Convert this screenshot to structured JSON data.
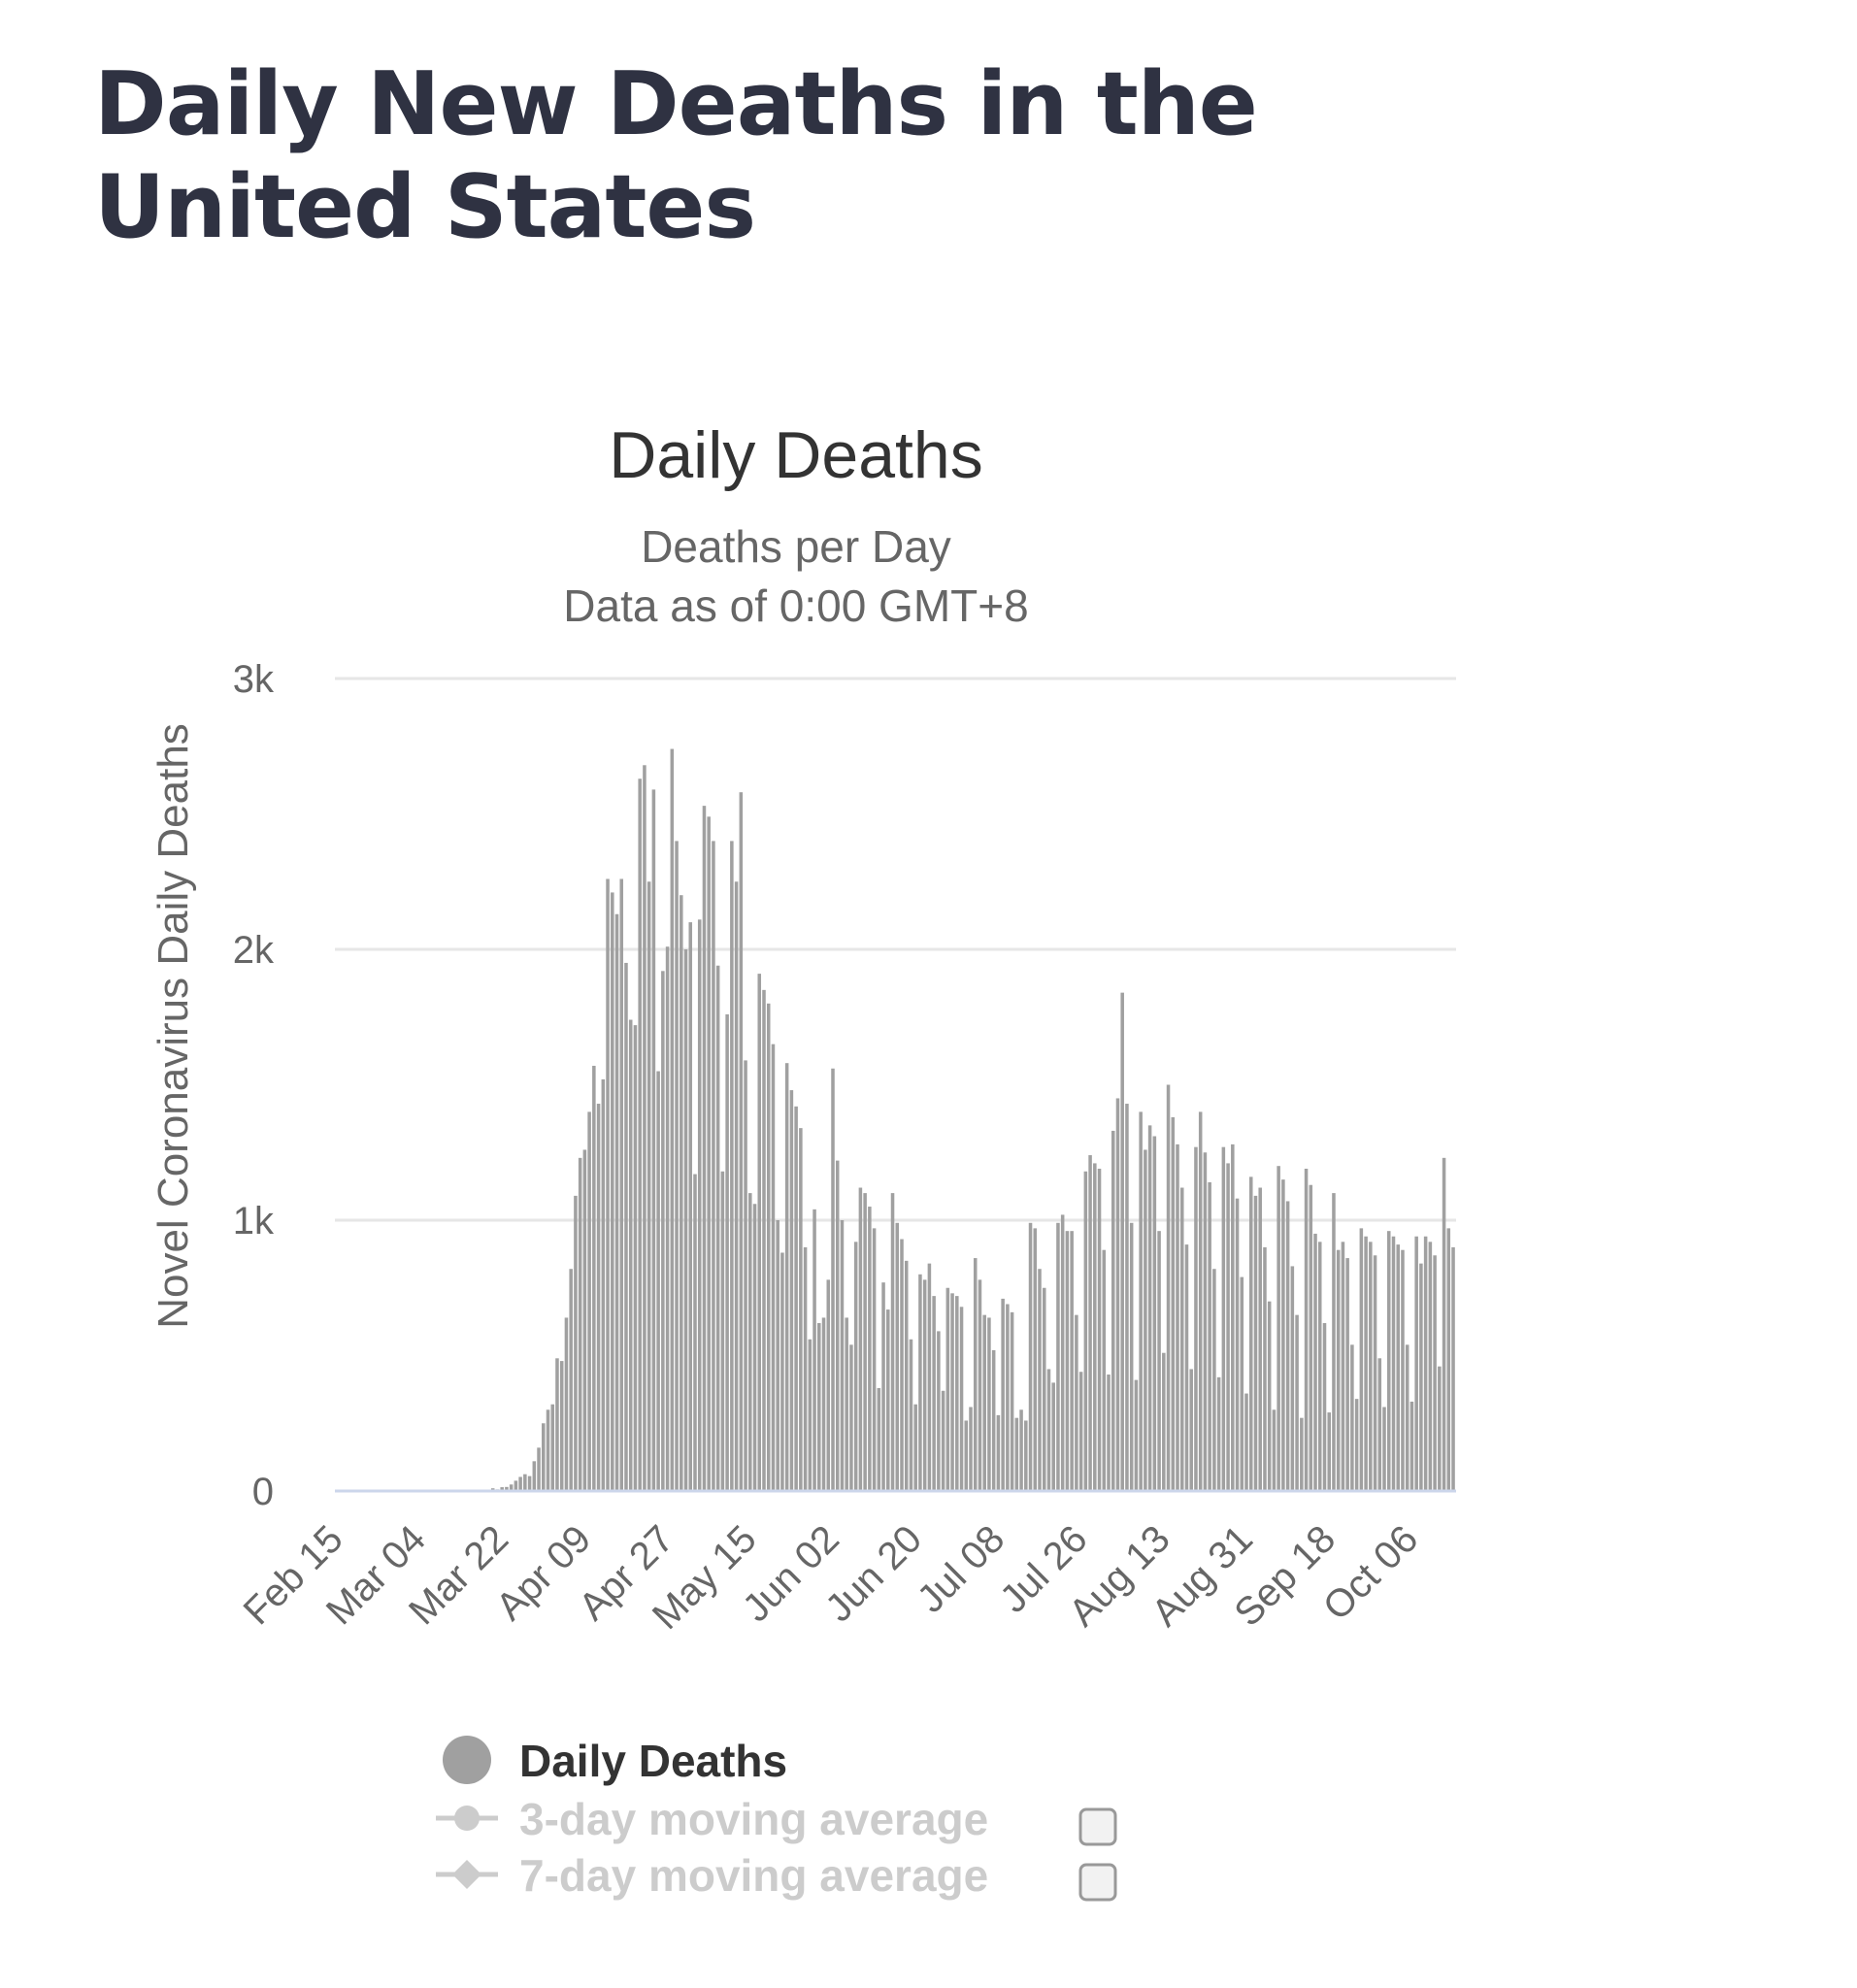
{
  "page": {
    "heading": "Daily New Deaths in the United States"
  },
  "colors": {
    "bar": "#a0a0a0",
    "grid": "#e6e6e6",
    "baseline": "#ccd6eb",
    "heading": "#2f3242",
    "legend_inactive": "#cccccc"
  },
  "chart_data": {
    "type": "bar",
    "title": "Daily Deaths",
    "subtitle_lines": [
      "Deaths per Day",
      "Data as of 0:00 GMT+8"
    ],
    "xlabel": "",
    "ylabel": "Novel Coronavirus Daily Deaths",
    "ylim": [
      0,
      3000
    ],
    "y_ticks": [
      {
        "value": 0,
        "label": "0"
      },
      {
        "value": 1000,
        "label": "1k"
      },
      {
        "value": 2000,
        "label": "2k"
      },
      {
        "value": 3000,
        "label": "3k"
      }
    ],
    "grid": true,
    "x_start_date": "Feb 15",
    "x_tick_labels": [
      "Feb 15",
      "Mar 04",
      "Mar 22",
      "Apr 09",
      "Apr 27",
      "May 15",
      "Jun 02",
      "Jun 20",
      "Jul 08",
      "Jul 26",
      "Aug 13",
      "Aug 31",
      "Sep 18",
      "Oct 06"
    ],
    "series": [
      {
        "name": "Daily Deaths",
        "values": [
          0,
          0,
          0,
          0,
          0,
          0,
          0,
          0,
          0,
          0,
          0,
          0,
          0,
          0,
          0,
          0,
          0,
          0,
          0,
          0,
          0,
          0,
          0,
          0,
          0,
          0,
          0,
          1,
          2,
          1,
          2,
          5,
          3,
          5,
          10,
          6,
          14,
          15,
          24,
          38,
          52,
          62,
          55,
          110,
          160,
          250,
          300,
          320,
          490,
          480,
          640,
          820,
          1090,
          1230,
          1260,
          1400,
          1570,
          1430,
          1520,
          2260,
          2210,
          2130,
          2260,
          1950,
          1740,
          1720,
          2630,
          2680,
          2250,
          2590,
          1550,
          1920,
          2010,
          2740,
          2400,
          2200,
          2000,
          2100,
          1170,
          2110,
          2530,
          2490,
          2400,
          1940,
          1180,
          1760,
          2400,
          2250,
          2580,
          1590,
          1100,
          1060,
          1910,
          1850,
          1800,
          1650,
          1000,
          880,
          1580,
          1480,
          1420,
          1340,
          900,
          560,
          1040,
          620,
          640,
          780,
          1560,
          1220,
          1000,
          640,
          540,
          920,
          1120,
          1100,
          1050,
          970,
          380,
          770,
          670,
          1100,
          990,
          930,
          850,
          560,
          320,
          800,
          780,
          840,
          720,
          590,
          370,
          750,
          730,
          720,
          680,
          260,
          310,
          860,
          780,
          650,
          640,
          520,
          280,
          710,
          690,
          660,
          270,
          300,
          260,
          990,
          970,
          820,
          750,
          450,
          400,
          990,
          1020,
          960,
          960,
          650,
          440,
          1180,
          1240,
          1210,
          1190,
          890,
          430,
          1330,
          1450,
          1840,
          1430,
          990,
          410,
          1400,
          1260,
          1350,
          1310,
          960,
          510,
          1500,
          1380,
          1280,
          1120,
          910,
          450,
          1270,
          1400,
          1250,
          1140,
          820,
          420,
          1270,
          1210,
          1280,
          1080,
          790,
          360,
          1160,
          1090,
          1120,
          900,
          700,
          300,
          1200,
          1150,
          1070,
          830,
          650,
          270,
          1190,
          1130,
          950,
          920,
          620,
          290,
          1100,
          890,
          920,
          860,
          540,
          340,
          970,
          940,
          920,
          870,
          490,
          310,
          960,
          940,
          910,
          890,
          540,
          330,
          940,
          840,
          940,
          920,
          870,
          460,
          1230,
          970,
          900
        ]
      }
    ]
  },
  "legend": {
    "items": [
      {
        "label": "Daily Deaths",
        "active": true,
        "symbol": "circle"
      },
      {
        "label": "3-day moving average",
        "active": false,
        "symbol": "circle-line"
      },
      {
        "label": "7-day moving average",
        "active": false,
        "symbol": "diamond-line"
      }
    ]
  }
}
